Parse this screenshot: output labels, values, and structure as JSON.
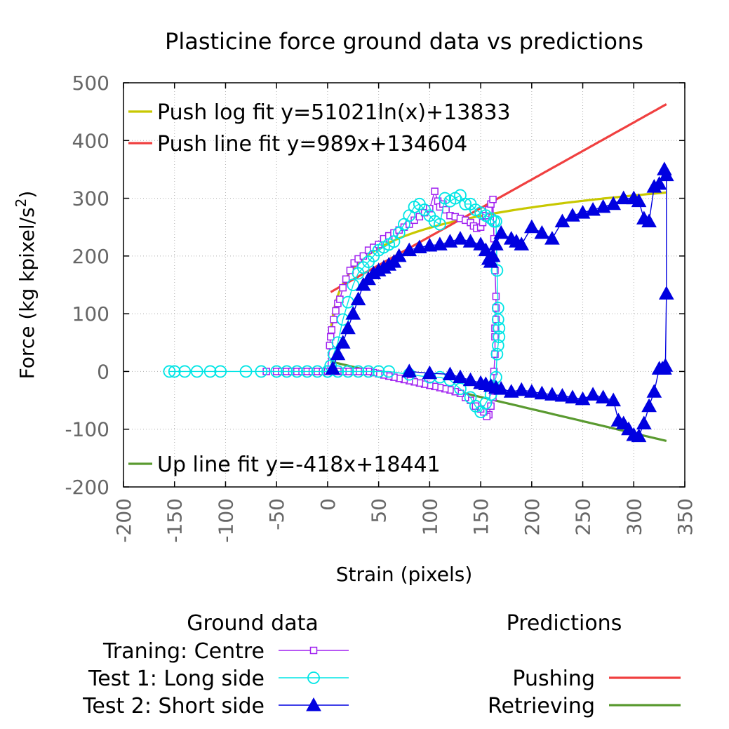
{
  "chart_data": {
    "type": "line",
    "title": "Plasticine force ground data vs predictions",
    "xlabel": "Strain (pixels)",
    "ylabel_main": "Force (kg kpixel/s",
    "ylabel_sup": "2",
    "ylabel_tail": ")",
    "xlim": [
      -200,
      350
    ],
    "ylim": [
      -200,
      500
    ],
    "x_ticks": [
      -200,
      -150,
      -100,
      -50,
      0,
      50,
      100,
      150,
      200,
      250,
      300,
      350
    ],
    "y_ticks": [
      500,
      400,
      300,
      200,
      100,
      0,
      -100,
      -200
    ],
    "grid": true,
    "legend_groups": {
      "ground": "Ground data",
      "predictions": "Predictions"
    },
    "colors": {
      "centre": "#a020f0",
      "long": "#00e5e5",
      "short": "#0000e0",
      "push_log": "#c8c800",
      "push_line": "#f04040",
      "up_line": "#5a9a30"
    },
    "fits": [
      {
        "key": "push_log",
        "label": "Push log fit y=51021ln(x)+13833",
        "legend_position": "top-left",
        "kind": "log",
        "a": 51021,
        "b": 13833,
        "scale": 0.001,
        "x_range": [
          3.5,
          332
        ]
      },
      {
        "key": "push_line",
        "label": "Push line fit y=989x+134604",
        "legend_position": "top-left",
        "kind": "linear",
        "a": 989,
        "b": 134604,
        "scale": 0.001,
        "x_range": [
          3,
          332
        ]
      },
      {
        "key": "up_line",
        "label": "Up line fit y=-418x+18441",
        "legend_position": "bottom-left",
        "kind": "linear",
        "a": -418,
        "b": 18441,
        "scale": 0.001,
        "x_range": [
          3,
          332
        ]
      }
    ],
    "series": [
      {
        "key": "centre",
        "name": "Traning: Centre",
        "marker": "square",
        "x": [
          -60,
          -50,
          -45,
          -40,
          -35,
          -30,
          -25,
          -20,
          -15,
          -10,
          -5,
          0,
          2,
          3,
          4,
          6,
          8,
          10,
          12,
          15,
          18,
          22,
          26,
          30,
          35,
          40,
          45,
          50,
          55,
          60,
          65,
          70,
          75,
          80,
          85,
          90,
          95,
          100,
          105,
          108,
          110,
          113,
          116,
          120,
          125,
          130,
          135,
          140,
          143,
          146,
          150,
          152,
          155,
          158,
          160,
          162,
          163,
          164,
          165,
          165,
          165,
          164,
          164,
          164,
          163,
          163,
          162,
          160,
          158,
          156,
          153,
          150,
          145,
          140,
          135,
          130,
          125,
          120,
          115,
          110,
          105,
          100,
          95,
          90,
          85,
          80,
          75,
          70,
          65,
          60,
          55,
          50,
          45,
          40,
          35,
          30,
          25,
          20,
          15,
          10,
          5,
          0
        ],
        "y": [
          0,
          0,
          0,
          0,
          0,
          0,
          0,
          0,
          0,
          0,
          0,
          0,
          45,
          60,
          72,
          90,
          105,
          118,
          125,
          145,
          160,
          175,
          188,
          195,
          200,
          210,
          215,
          220,
          230,
          235,
          240,
          245,
          250,
          255,
          262,
          268,
          275,
          282,
          312,
          295,
          285,
          290,
          280,
          270,
          268,
          265,
          262,
          258,
          252,
          248,
          250,
          258,
          270,
          280,
          290,
          298,
          230,
          175,
          130,
          110,
          90,
          75,
          60,
          30,
          0,
          -30,
          -45,
          -60,
          -75,
          -78,
          -70,
          -65,
          -60,
          -50,
          -45,
          -38,
          -35,
          -32,
          -30,
          -28,
          -26,
          -24,
          -22,
          -20,
          -18,
          -16,
          -14,
          -12,
          -10,
          -8,
          -6,
          -4,
          -2,
          0,
          0,
          0,
          0,
          0,
          0,
          0,
          0,
          0
        ]
      },
      {
        "key": "long",
        "name": "Test 1: Long side",
        "marker": "circle",
        "x": [
          -155,
          -150,
          -140,
          -128,
          -115,
          -105,
          -80,
          -65,
          -50,
          -40,
          -30,
          -20,
          -10,
          0,
          3,
          6,
          10,
          15,
          20,
          25,
          30,
          35,
          40,
          45,
          50,
          55,
          60,
          65,
          70,
          75,
          80,
          85,
          90,
          95,
          100,
          105,
          110,
          115,
          120,
          125,
          130,
          135,
          140,
          145,
          150,
          155,
          160,
          163,
          165,
          166,
          167,
          167,
          168,
          168,
          167,
          166,
          165,
          162,
          160,
          155,
          150,
          145,
          140,
          130,
          120,
          110,
          100,
          80,
          60,
          50,
          40,
          30,
          20,
          10,
          0
        ],
        "y": [
          0,
          0,
          0,
          0,
          0,
          0,
          0,
          0,
          0,
          0,
          0,
          0,
          0,
          0,
          10,
          30,
          50,
          90,
          120,
          150,
          170,
          180,
          190,
          200,
          210,
          215,
          220,
          225,
          240,
          255,
          270,
          285,
          290,
          280,
          270,
          260,
          255,
          300,
          295,
          300,
          305,
          290,
          290,
          280,
          275,
          270,
          265,
          260,
          260,
          175,
          110,
          90,
          75,
          60,
          45,
          30,
          -10,
          -25,
          -40,
          -55,
          -70,
          -60,
          -45,
          -30,
          -15,
          -10,
          -10,
          -5,
          0,
          0,
          0,
          0,
          0,
          0,
          0
        ]
      },
      {
        "key": "short",
        "name": "Test 2: Short side",
        "marker": "triangle",
        "x": [
          5,
          10,
          15,
          20,
          25,
          30,
          35,
          40,
          45,
          50,
          55,
          60,
          65,
          70,
          80,
          90,
          100,
          110,
          120,
          130,
          140,
          150,
          155,
          158,
          160,
          162,
          165,
          170,
          180,
          185,
          190,
          200,
          210,
          220,
          230,
          240,
          250,
          260,
          270,
          280,
          290,
          300,
          305,
          310,
          315,
          320,
          325,
          330,
          332,
          332,
          331,
          330,
          328,
          325,
          320,
          315,
          310,
          305,
          300,
          295,
          290,
          285,
          280,
          270,
          260,
          250,
          240,
          230,
          220,
          210,
          200,
          190,
          180,
          170,
          165,
          160,
          155,
          150,
          140,
          130,
          120,
          100,
          80
        ],
        "y": [
          5,
          30,
          50,
          75,
          100,
          125,
          150,
          160,
          170,
          175,
          180,
          185,
          190,
          200,
          210,
          215,
          218,
          220,
          225,
          230,
          225,
          220,
          210,
          195,
          190,
          200,
          220,
          240,
          230,
          225,
          220,
          250,
          240,
          230,
          260,
          270,
          275,
          280,
          285,
          290,
          300,
          300,
          295,
          265,
          260,
          320,
          325,
          350,
          340,
          135,
          10,
          5,
          5,
          5,
          -35,
          -60,
          -90,
          -112,
          -110,
          -100,
          -90,
          -85,
          -50,
          -45,
          -40,
          -48,
          -45,
          -42,
          -40,
          -38,
          -35,
          -32,
          -35,
          -30,
          -28,
          -25,
          -22,
          -20,
          -15,
          -10,
          -5,
          -3,
          0
        ]
      }
    ]
  }
}
